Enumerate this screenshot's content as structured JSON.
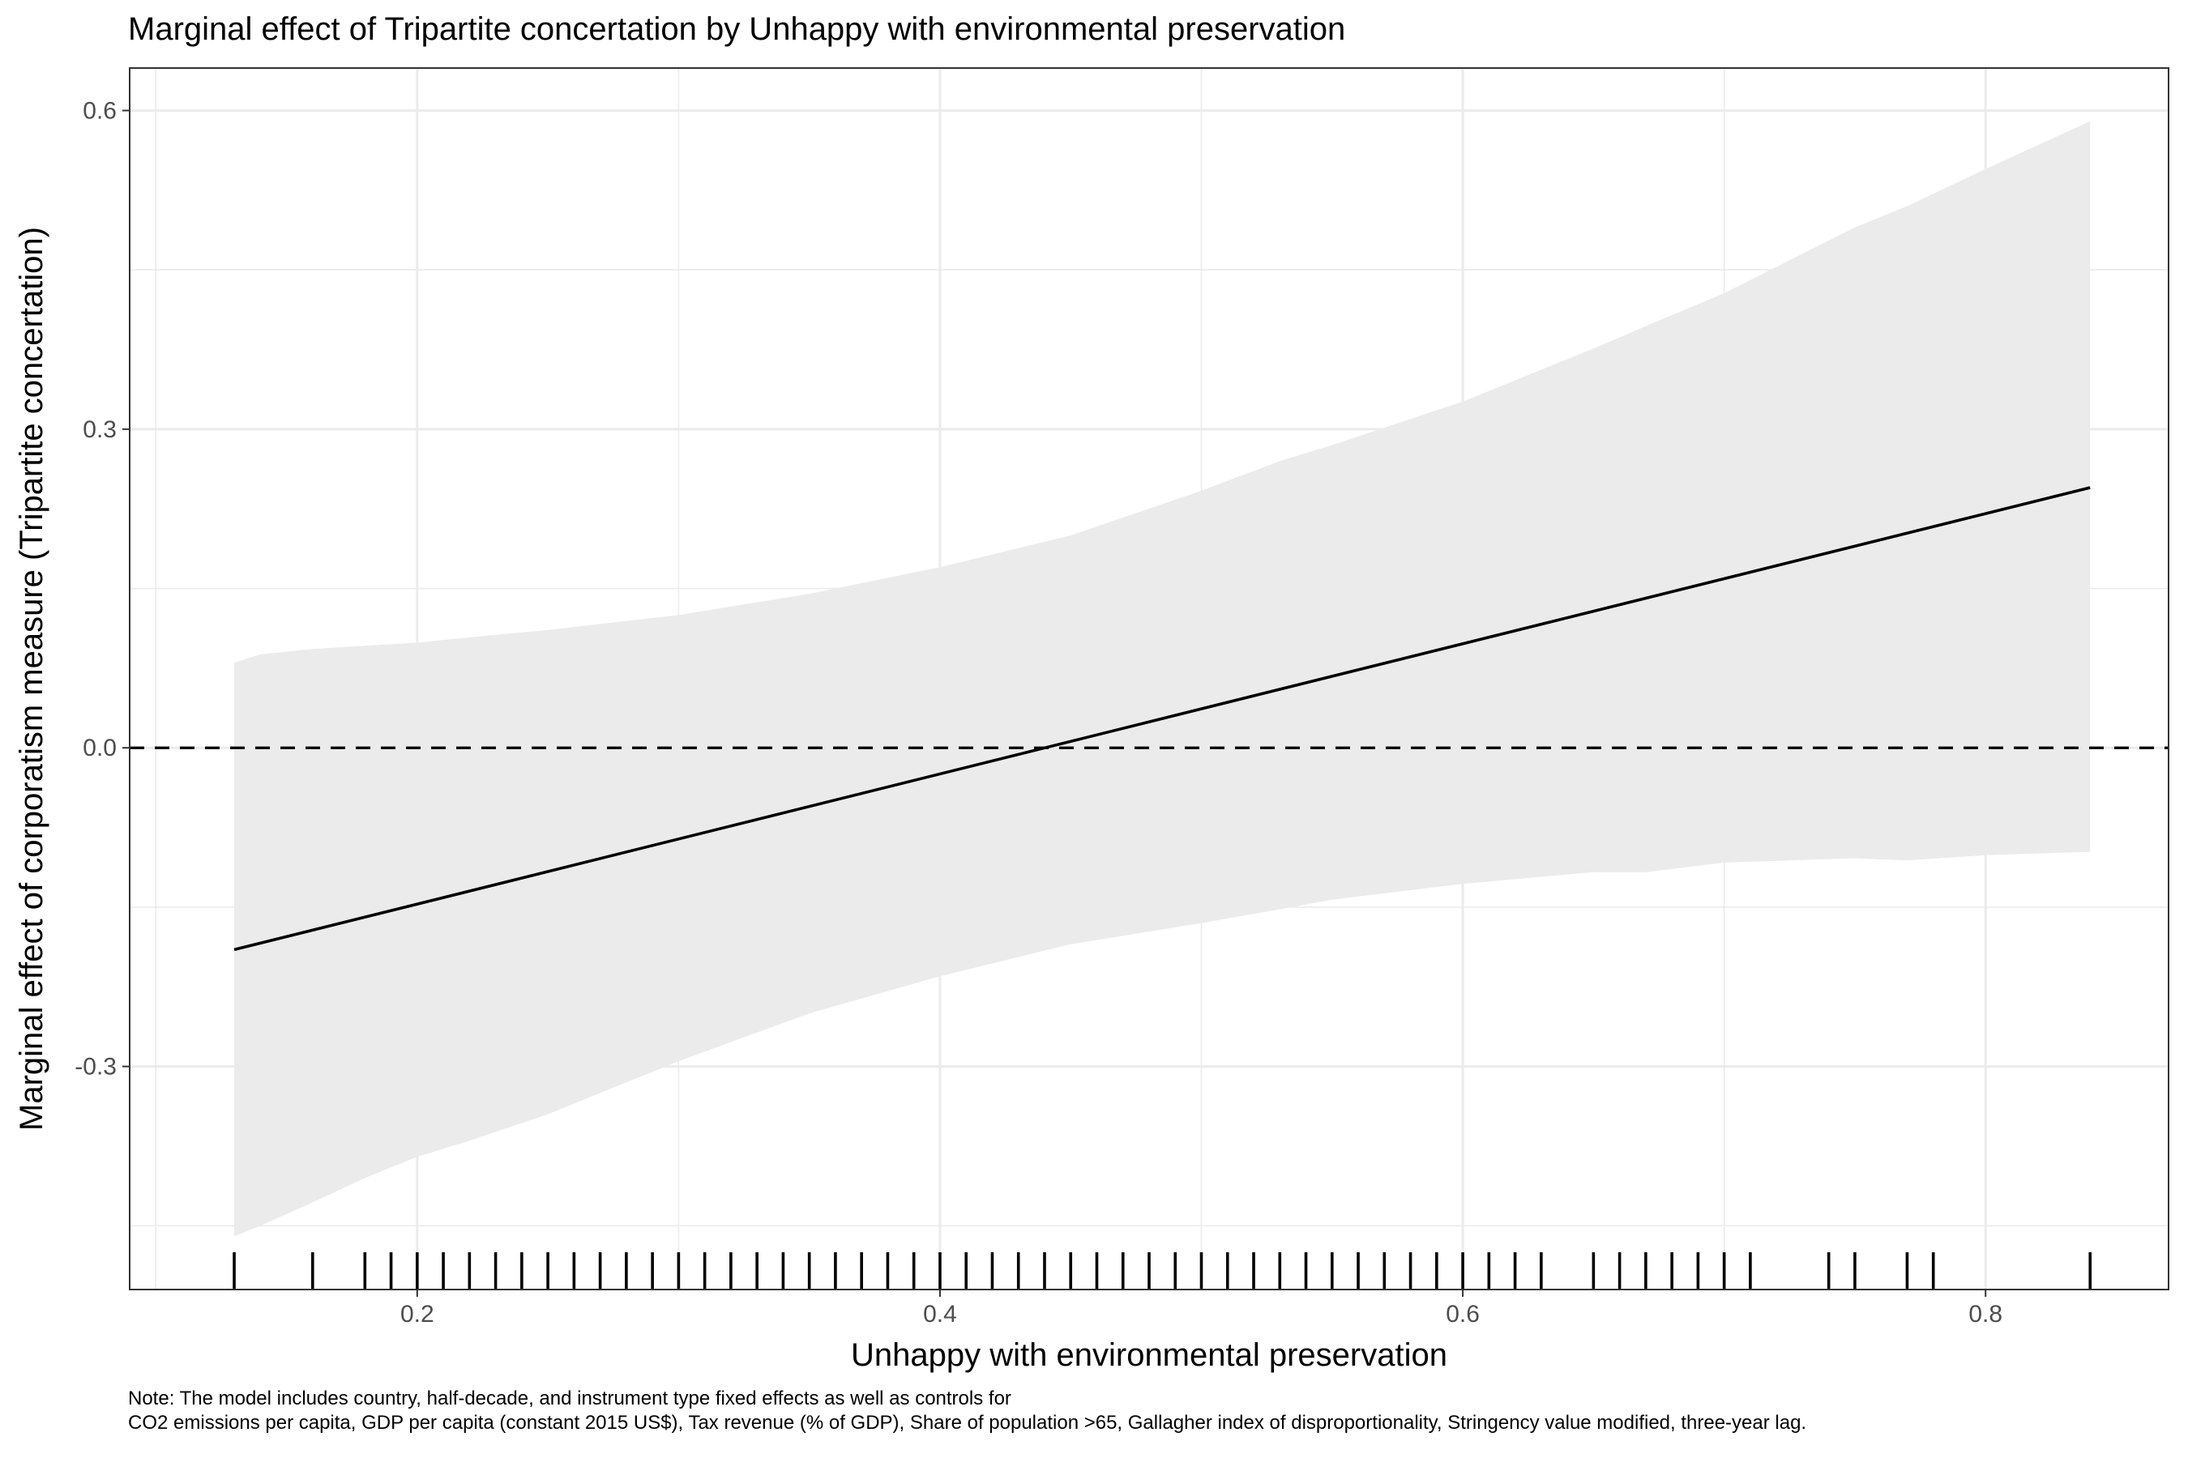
{
  "chart_data": {
    "type": "line",
    "title": "Marginal effect of Tripartite concertation by Unhappy with environmental preservation",
    "xlabel": "Unhappy with environmental preservation",
    "ylabel": "Marginal effect of corporatism measure (Tripartite concertation)",
    "xlim": [
      0.09,
      0.87
    ],
    "ylim": [
      -0.51,
      0.64
    ],
    "x_ticks": [
      0.2,
      0.4,
      0.6,
      0.8
    ],
    "x_tick_labels": [
      "0.2",
      "0.4",
      "0.6",
      "0.8"
    ],
    "y_ticks": [
      -0.3,
      0.0,
      0.3,
      0.6
    ],
    "y_tick_labels": [
      "-0.3",
      "0.0",
      "0.3",
      "0.6"
    ],
    "grid": true,
    "reference_line": {
      "y": 0,
      "style": "dashed"
    },
    "effect_line": {
      "x": [
        0.13,
        0.84
      ],
      "y": [
        -0.19,
        0.245
      ]
    },
    "confidence_band": {
      "x": [
        0.13,
        0.14,
        0.16,
        0.18,
        0.2,
        0.22,
        0.25,
        0.3,
        0.35,
        0.4,
        0.45,
        0.5,
        0.53,
        0.55,
        0.6,
        0.65,
        0.67,
        0.7,
        0.75,
        0.77,
        0.8,
        0.84
      ],
      "upper": [
        0.08,
        0.088,
        0.093,
        0.096,
        0.099,
        0.104,
        0.111,
        0.125,
        0.145,
        0.17,
        0.2,
        0.242,
        0.27,
        0.285,
        0.326,
        0.376,
        0.397,
        0.428,
        0.49,
        0.51,
        0.545,
        0.59
      ],
      "lower": [
        -0.46,
        -0.45,
        -0.428,
        -0.405,
        -0.385,
        -0.37,
        -0.345,
        -0.295,
        -0.25,
        -0.215,
        -0.185,
        -0.165,
        -0.152,
        -0.143,
        -0.128,
        -0.117,
        -0.117,
        -0.108,
        -0.104,
        -0.106,
        -0.101,
        -0.098
      ]
    },
    "rug_x": [
      0.13,
      0.16,
      0.18,
      0.19,
      0.2,
      0.21,
      0.22,
      0.23,
      0.24,
      0.25,
      0.26,
      0.27,
      0.28,
      0.29,
      0.3,
      0.31,
      0.32,
      0.33,
      0.34,
      0.35,
      0.36,
      0.37,
      0.38,
      0.39,
      0.4,
      0.41,
      0.42,
      0.43,
      0.44,
      0.45,
      0.46,
      0.47,
      0.48,
      0.49,
      0.5,
      0.51,
      0.52,
      0.53,
      0.54,
      0.55,
      0.56,
      0.57,
      0.58,
      0.59,
      0.6,
      0.61,
      0.62,
      0.63,
      0.65,
      0.66,
      0.67,
      0.68,
      0.69,
      0.7,
      0.71,
      0.74,
      0.75,
      0.77,
      0.78,
      0.84
    ],
    "note_lines": [
      "Note: The model includes country, half-decade, and instrument type fixed effects as well as controls for",
      "CO2 emissions per capita, GDP per capita (constant 2015 US$), Tax revenue (% of GDP), Share of population >65, Gallagher index of disproportionality, Stringency value modified, three-year lag."
    ]
  }
}
